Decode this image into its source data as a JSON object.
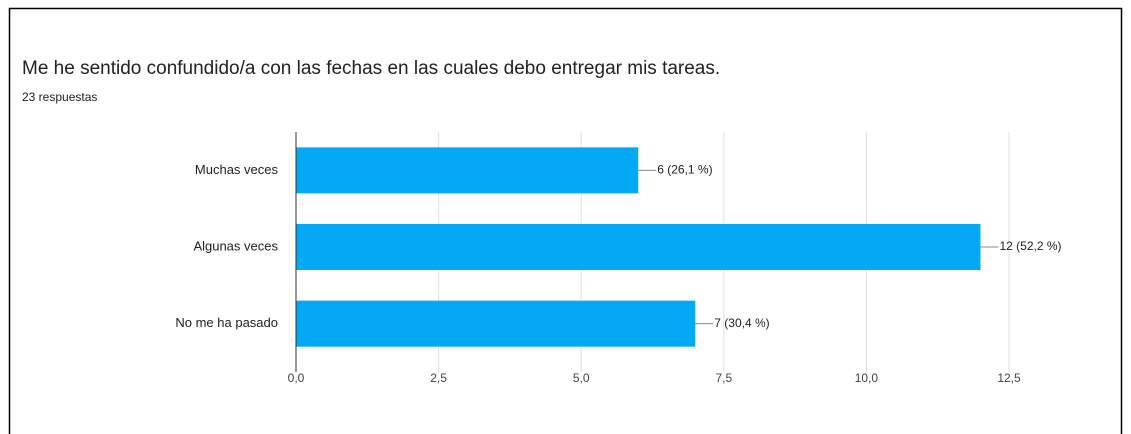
{
  "chart_data": {
    "type": "bar",
    "orientation": "horizontal",
    "title": "Me he sentido confundido/a con las fechas en las cuales debo entregar mis tareas.",
    "subtitle": "23 respuestas",
    "categories": [
      "Muchas veces",
      "Algunas veces",
      "No me ha pasado"
    ],
    "values": [
      6,
      12,
      7
    ],
    "value_labels": [
      "6 (26,1 %)",
      "12 (52,2 %)",
      "7 (30,4 %)"
    ],
    "color": "#03a9f4",
    "xlim": [
      0,
      12.5
    ],
    "xticks": [
      {
        "value": 0,
        "label": "0,0"
      },
      {
        "value": 2.5,
        "label": "2,5"
      },
      {
        "value": 5,
        "label": "5,0"
      },
      {
        "value": 7.5,
        "label": "7,5"
      },
      {
        "value": 10,
        "label": "10,0"
      },
      {
        "value": 12.5,
        "label": "12,5"
      }
    ],
    "grid": true
  }
}
